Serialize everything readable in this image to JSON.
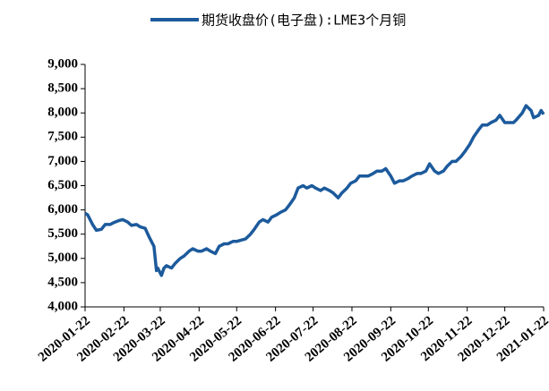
{
  "chart_data": {
    "type": "line",
    "legend": "top",
    "x": [
      "2020-01-22",
      "2020-01-24",
      "2020-01-28",
      "2020-01-31",
      "2020-02-04",
      "2020-02-07",
      "2020-02-11",
      "2020-02-14",
      "2020-02-18",
      "2020-02-21",
      "2020-02-25",
      "2020-02-28",
      "2020-03-03",
      "2020-03-06",
      "2020-03-10",
      "2020-03-13",
      "2020-03-17",
      "2020-03-19",
      "2020-03-20",
      "2020-03-23",
      "2020-03-25",
      "2020-03-27",
      "2020-03-31",
      "2020-04-03",
      "2020-04-07",
      "2020-04-10",
      "2020-04-14",
      "2020-04-17",
      "2020-04-21",
      "2020-04-24",
      "2020-04-28",
      "2020-05-01",
      "2020-05-05",
      "2020-05-08",
      "2020-05-12",
      "2020-05-15",
      "2020-05-19",
      "2020-05-22",
      "2020-05-26",
      "2020-05-29",
      "2020-06-02",
      "2020-06-05",
      "2020-06-09",
      "2020-06-12",
      "2020-06-16",
      "2020-06-19",
      "2020-06-23",
      "2020-06-26",
      "2020-06-30",
      "2020-07-03",
      "2020-07-07",
      "2020-07-10",
      "2020-07-14",
      "2020-07-17",
      "2020-07-21",
      "2020-07-24",
      "2020-07-28",
      "2020-07-31",
      "2020-08-04",
      "2020-08-07",
      "2020-08-11",
      "2020-08-14",
      "2020-08-18",
      "2020-08-21",
      "2020-08-25",
      "2020-08-28",
      "2020-09-01",
      "2020-09-04",
      "2020-09-08",
      "2020-09-11",
      "2020-09-15",
      "2020-09-18",
      "2020-09-22",
      "2020-09-25",
      "2020-09-29",
      "2020-10-02",
      "2020-10-06",
      "2020-10-09",
      "2020-10-13",
      "2020-10-16",
      "2020-10-20",
      "2020-10-23",
      "2020-10-27",
      "2020-10-30",
      "2020-11-03",
      "2020-11-06",
      "2020-11-10",
      "2020-11-13",
      "2020-11-17",
      "2020-11-20",
      "2020-11-24",
      "2020-11-27",
      "2020-12-01",
      "2020-12-04",
      "2020-12-08",
      "2020-12-11",
      "2020-12-15",
      "2020-12-18",
      "2020-12-22",
      "2020-12-25",
      "2020-12-29",
      "2020-12-31",
      "2021-01-05",
      "2021-01-08",
      "2021-01-12",
      "2021-01-14",
      "2021-01-18",
      "2021-01-20",
      "2021-01-22"
    ],
    "series": [
      {
        "name": "期货收盘价(电子盘):LME3个月铜",
        "color": "#1c5a9c",
        "values": [
          5930,
          5900,
          5700,
          5580,
          5600,
          5700,
          5700,
          5740,
          5780,
          5800,
          5750,
          5680,
          5700,
          5650,
          5620,
          5450,
          5250,
          4750,
          4800,
          4650,
          4800,
          4850,
          4800,
          4900,
          5000,
          5050,
          5150,
          5200,
          5150,
          5150,
          5200,
          5150,
          5100,
          5250,
          5300,
          5300,
          5350,
          5350,
          5380,
          5400,
          5500,
          5600,
          5750,
          5800,
          5750,
          5850,
          5900,
          5950,
          6000,
          6100,
          6250,
          6450,
          6500,
          6450,
          6500,
          6450,
          6400,
          6450,
          6400,
          6350,
          6250,
          6350,
          6450,
          6550,
          6600,
          6700,
          6700,
          6700,
          6750,
          6800,
          6800,
          6850,
          6700,
          6550,
          6600,
          6600,
          6650,
          6700,
          6750,
          6750,
          6800,
          6950,
          6800,
          6750,
          6800,
          6900,
          7000,
          7000,
          7100,
          7200,
          7350,
          7500,
          7650,
          7750,
          7750,
          7800,
          7850,
          7950,
          7800,
          7800,
          7800,
          7850,
          8000,
          8150,
          8050,
          7900,
          7950,
          8050,
          7970
        ]
      }
    ],
    "xlim": [
      "2020-01-22",
      "2021-01-22"
    ],
    "xticks": [
      "2020-01-22",
      "2020-02-22",
      "2020-03-22",
      "2020-04-22",
      "2020-05-22",
      "2020-06-22",
      "2020-07-22",
      "2020-08-22",
      "2020-09-22",
      "2020-10-22",
      "2020-11-22",
      "2020-12-22",
      "2021-01-22"
    ],
    "ylim": [
      4000,
      9000
    ],
    "yticks": [
      {
        "value": 4000,
        "label": "4,000"
      },
      {
        "value": 4500,
        "label": "4,500"
      },
      {
        "value": 5000,
        "label": "5,000"
      },
      {
        "value": 5500,
        "label": "5,500"
      },
      {
        "value": 6000,
        "label": "6,000"
      },
      {
        "value": 6500,
        "label": "6,500"
      },
      {
        "value": 7000,
        "label": "7,000"
      },
      {
        "value": 7500,
        "label": "7,500"
      },
      {
        "value": 8000,
        "label": "8,000"
      },
      {
        "value": 8500,
        "label": "8,500"
      },
      {
        "value": 9000,
        "label": "9,000"
      }
    ],
    "grid": false
  }
}
